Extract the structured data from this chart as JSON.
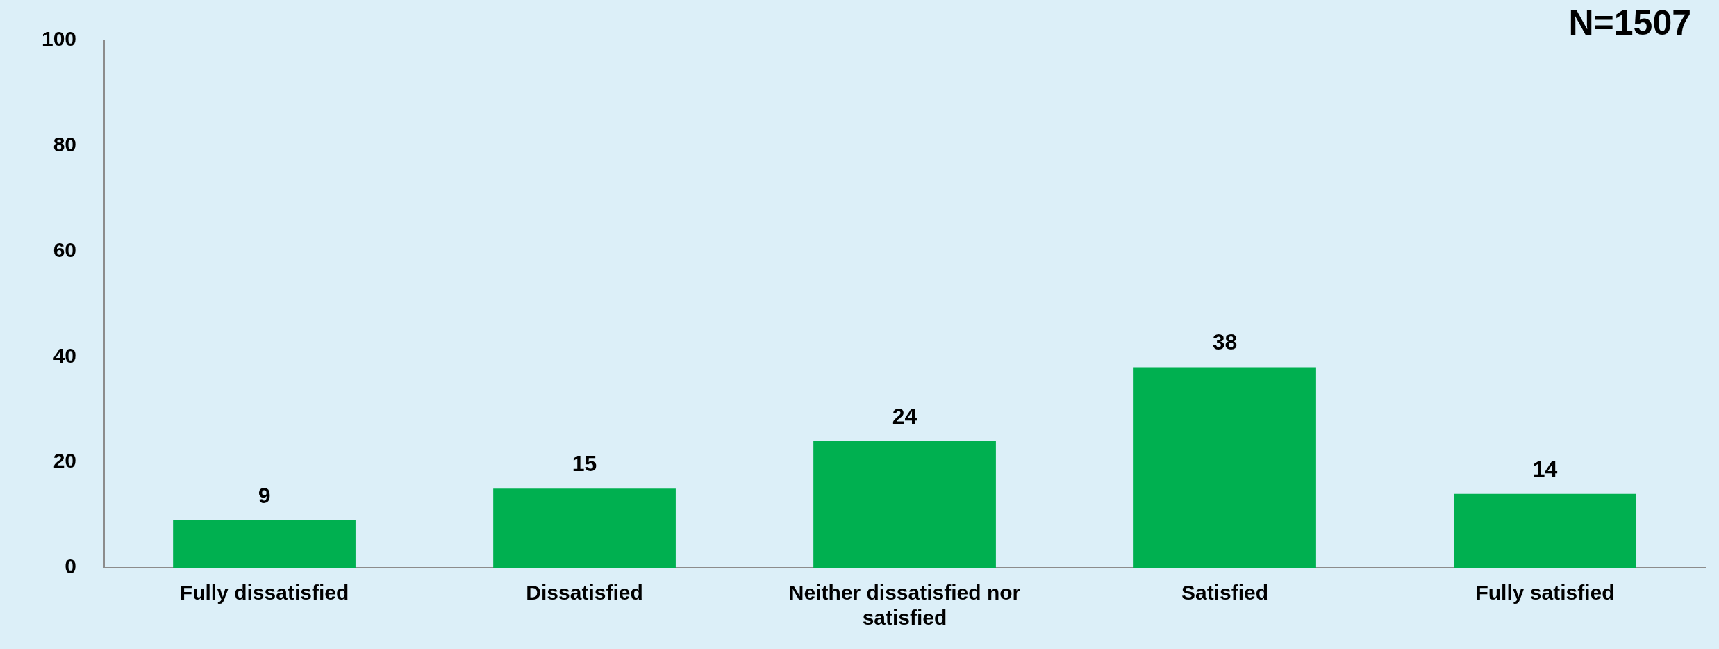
{
  "chart_data": {
    "type": "bar",
    "categories": [
      "Fully dissatisfied",
      "Dissatisfied",
      "Neither dissatisfied nor satisfied",
      "Satisfied",
      "Fully satisfied"
    ],
    "values": [
      9,
      15,
      24,
      38,
      14
    ],
    "color": "#00b050",
    "ylim": [
      0,
      100
    ],
    "yticks": [
      0,
      20,
      40,
      60,
      80,
      100
    ],
    "grid": false,
    "legend": false,
    "data_labels": true,
    "annotations": [
      "N=1507"
    ]
  }
}
